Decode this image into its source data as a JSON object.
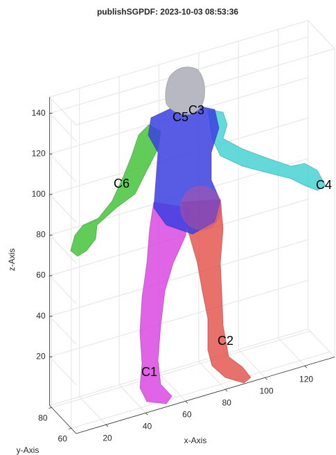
{
  "chart_data": {
    "type": "surface3d",
    "title": "publishSGPDF: 2023-10-03 08:53:36",
    "xlabel": "x-Axis",
    "ylabel": "y-Axis",
    "zlabel": "z-Axis",
    "xlim": [
      5,
      135
    ],
    "ylim": [
      55,
      82
    ],
    "zlim": [
      -4,
      148
    ],
    "xticks": [
      20,
      40,
      60,
      80,
      100,
      120
    ],
    "yticks": [
      60,
      80
    ],
    "zticks": [
      20,
      40,
      60,
      80,
      100,
      120,
      140
    ],
    "grid": true,
    "annotations": [
      "C1",
      "C2",
      "C3",
      "C4",
      "C5",
      "C6"
    ]
  }
}
